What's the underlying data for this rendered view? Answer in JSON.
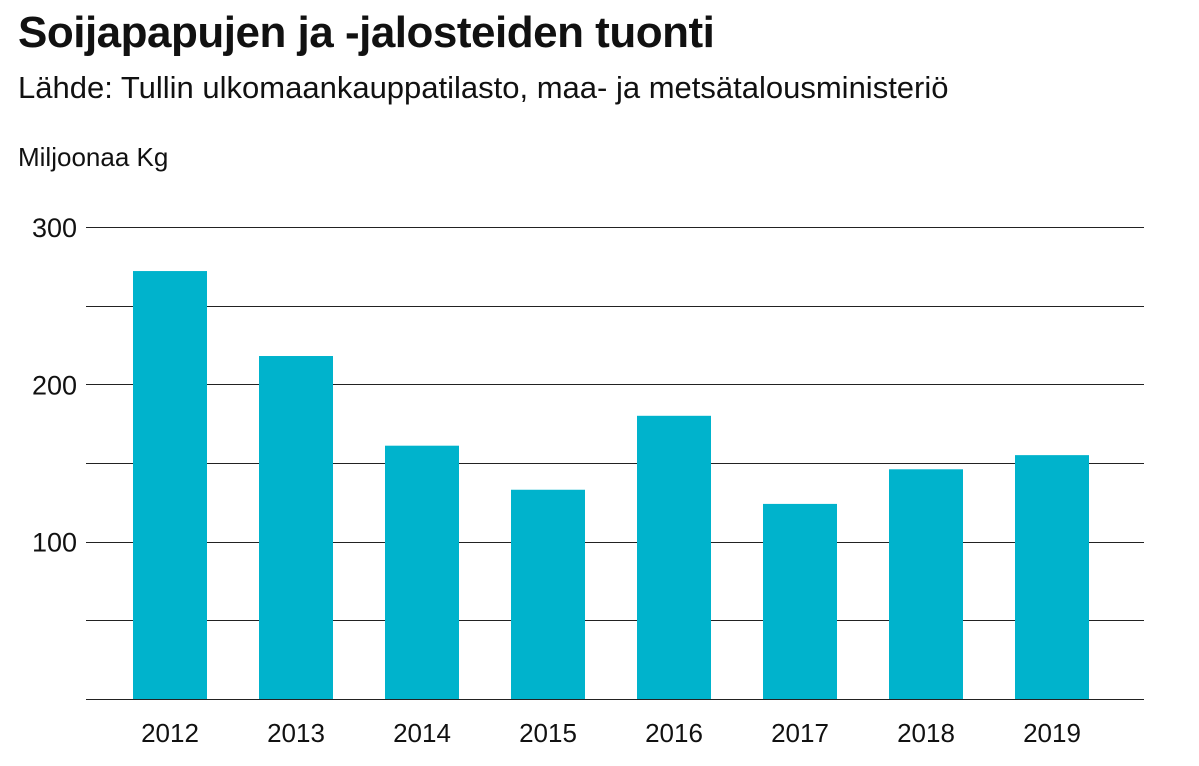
{
  "chart_data": {
    "type": "bar",
    "title": "Soijapapujen ja -jalosteiden tuonti",
    "subtitle": "Lähde: Tullin ulkomaankauppatilasto, maa- ja metsätalousministeriö",
    "ylabel": "Miljoonaa Kg",
    "xlabel": "",
    "categories": [
      "2012",
      "2013",
      "2014",
      "2015",
      "2016",
      "2017",
      "2018",
      "2019"
    ],
    "values": [
      272,
      218,
      161,
      133,
      180,
      124,
      146,
      155
    ],
    "ylim": [
      0,
      300
    ],
    "yticks": [
      100,
      200,
      300
    ],
    "ygrid": [
      0,
      50,
      100,
      150,
      200,
      250,
      300
    ],
    "grid": true,
    "legend": "none",
    "bar_color": "#00b3cc",
    "grid_color": "#222222"
  }
}
